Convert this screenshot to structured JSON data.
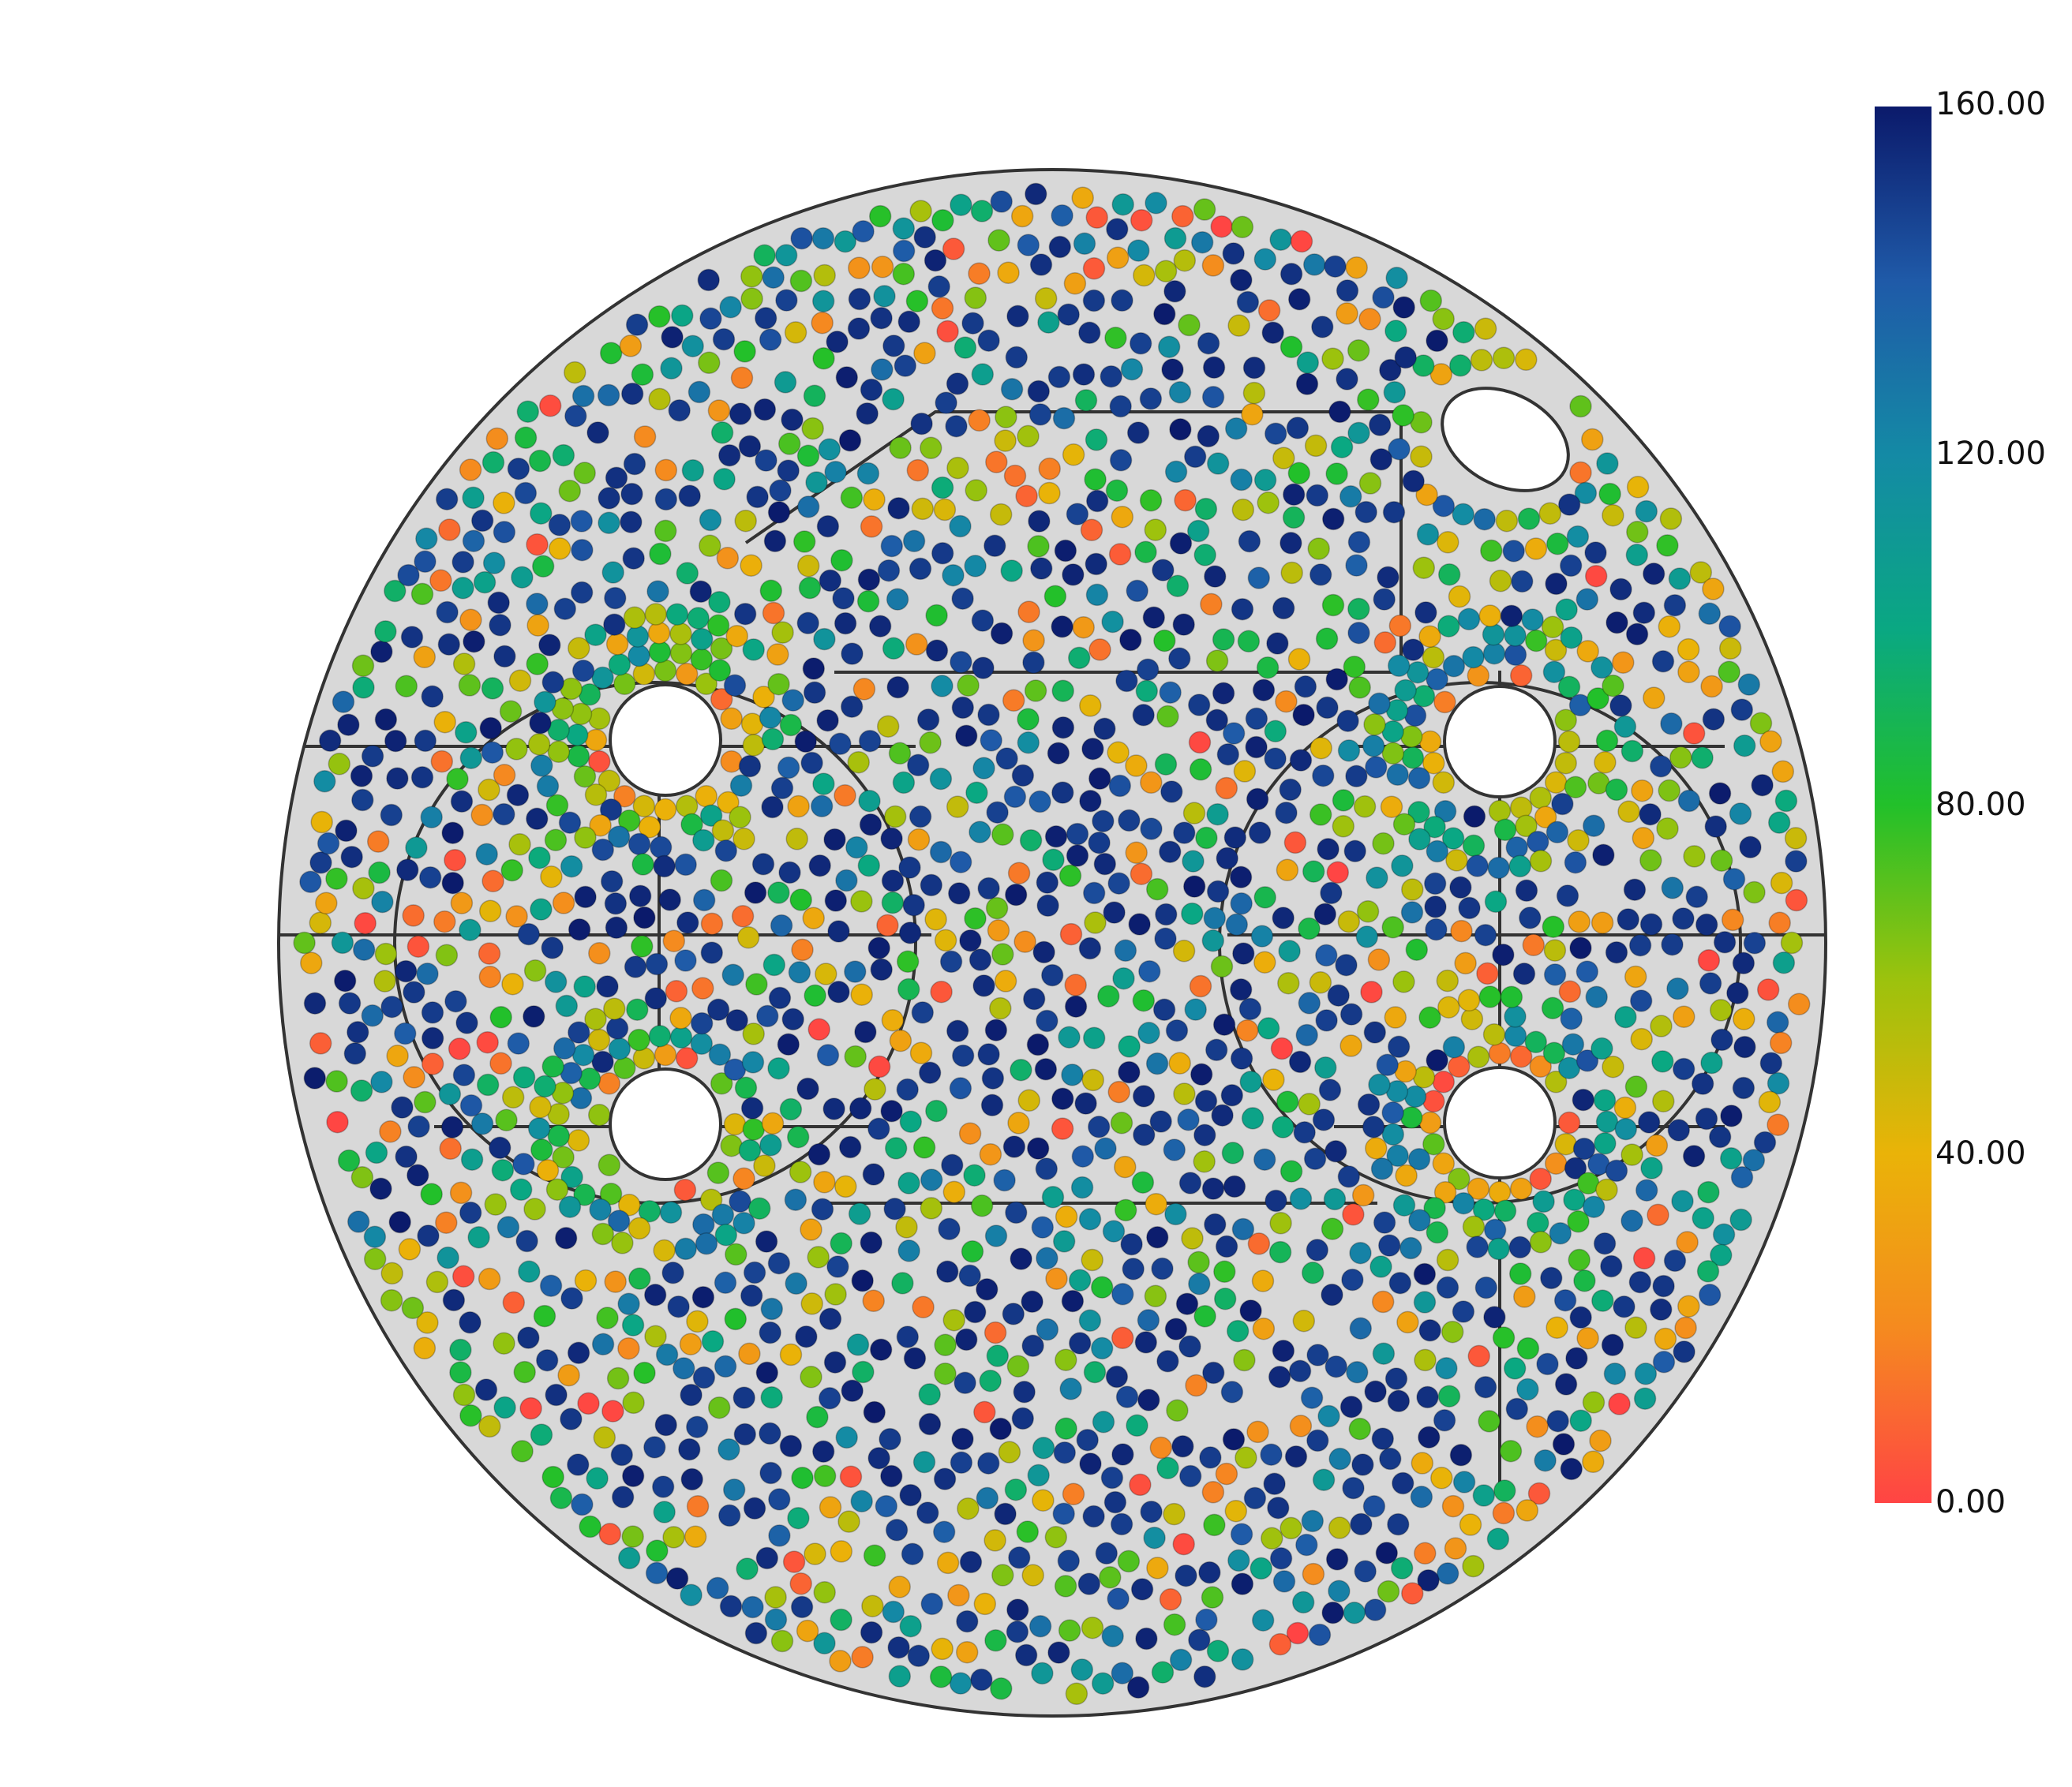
{
  "colorbar": {
    "min": 0,
    "max": 160,
    "labels": [
      "0.00",
      "40.00",
      "80.00",
      "120.00",
      "160.00"
    ],
    "colormap": [
      "#ff4444",
      "#f58a1f",
      "#eab308",
      "#9cc20d",
      "#22c02a",
      "#0aa882",
      "#148aa5",
      "#1f5aa8",
      "#0b1a6b"
    ]
  },
  "scene": {
    "background": "#ffffff",
    "disk_fill": "#d8d8d8",
    "outline_color": "#333333",
    "particle_count": 2100,
    "seed": 7
  }
}
